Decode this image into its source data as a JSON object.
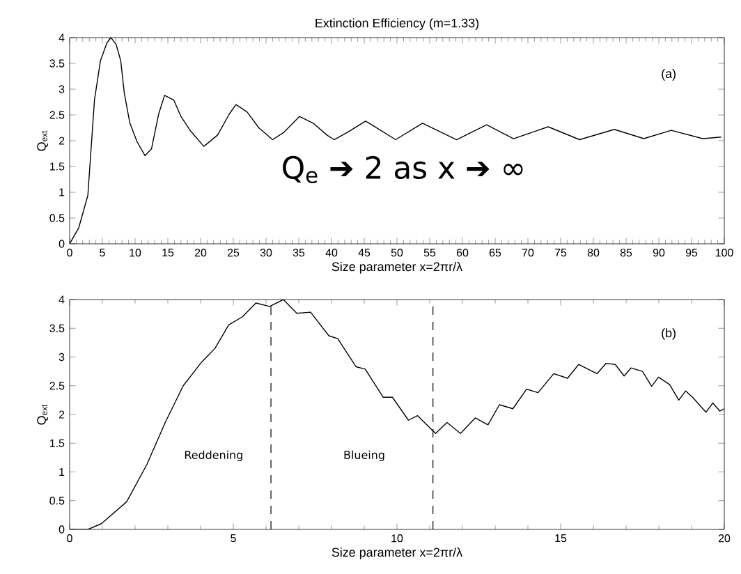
{
  "chart_data": [
    {
      "type": "line",
      "title": "Extinction Efficiency (m=1.33)",
      "xlabel": "Size parameter x=2πr/λ",
      "ylabel": "Q$_{ext}$",
      "annotations": [
        "(a)",
        "Q$_{e}$ ➔ 2 as x ➔ ∞"
      ],
      "x": [
        0,
        1.39,
        2.78,
        3.8,
        4.7,
        5.7,
        6.3,
        7.1,
        7.8,
        8.35,
        9.2,
        10.3,
        11.5,
        12.5,
        13.6,
        14.5,
        15.9,
        17.0,
        18.4,
        20.5,
        22.6,
        24.4,
        25.4,
        27.1,
        28.9,
        31.0,
        32.7,
        35.1,
        37.2,
        39.3,
        40.4,
        42.4,
        45.2,
        46.4,
        49.8,
        53.9,
        59.1,
        63.7,
        67.8,
        73.1,
        77.9,
        83.2,
        87.7,
        91.9,
        96.7,
        99.5
      ],
      "values": [
        0,
        0.31,
        0.94,
        2.8,
        3.55,
        3.9,
        4.0,
        3.87,
        3.55,
        2.92,
        2.34,
        1.98,
        1.71,
        1.84,
        2.52,
        2.88,
        2.79,
        2.47,
        2.2,
        1.89,
        2.11,
        2.52,
        2.7,
        2.56,
        2.25,
        2.02,
        2.16,
        2.47,
        2.34,
        2.11,
        2.02,
        2.16,
        2.38,
        2.29,
        2.02,
        2.34,
        2.02,
        2.31,
        2.04,
        2.27,
        2.02,
        2.22,
        2.04,
        2.2,
        2.04,
        2.07
      ],
      "color": "#000000",
      "xlim": [
        0,
        100
      ],
      "xticks": [
        0,
        5,
        10,
        15,
        20,
        25,
        30,
        35,
        40,
        45,
        50,
        55,
        60,
        65,
        70,
        75,
        80,
        85,
        90,
        95,
        100
      ],
      "ylim": [
        0,
        4
      ],
      "yticks": [
        0,
        0.5,
        1,
        1.5,
        2,
        2.5,
        3,
        3.5,
        4
      ]
    },
    {
      "type": "line",
      "xlabel": "Size parameter x=2πr/λ",
      "ylabel": "Q$_{ext}$",
      "annotations": [
        "(b)",
        "Reddening",
        "Blueing"
      ],
      "x": [
        0,
        0.56,
        0.97,
        1.74,
        2.36,
        2.92,
        3.47,
        4.03,
        4.44,
        4.86,
        5.28,
        5.69,
        6.11,
        6.53,
        6.94,
        7.36,
        7.92,
        8.19,
        8.75,
        9.03,
        9.58,
        9.86,
        10.35,
        10.63,
        11.18,
        11.53,
        11.94,
        12.39,
        12.78,
        13.13,
        13.54,
        13.96,
        14.31,
        14.79,
        15.21,
        15.55,
        16.11,
        16.39,
        16.67,
        16.94,
        17.15,
        17.5,
        17.78,
        17.99,
        18.33,
        18.61,
        18.82,
        19.03,
        19.44,
        19.65,
        19.86,
        20
      ],
      "values": [
        0,
        0,
        0.1,
        0.48,
        1.13,
        1.86,
        2.5,
        2.91,
        3.15,
        3.56,
        3.7,
        3.94,
        3.88,
        4.0,
        3.76,
        3.78,
        3.37,
        3.32,
        2.83,
        2.79,
        2.3,
        2.3,
        1.9,
        1.98,
        1.67,
        1.86,
        1.67,
        1.94,
        1.82,
        2.17,
        2.1,
        2.44,
        2.38,
        2.71,
        2.63,
        2.87,
        2.71,
        2.89,
        2.87,
        2.67,
        2.81,
        2.75,
        2.49,
        2.65,
        2.52,
        2.25,
        2.41,
        2.3,
        2.04,
        2.2,
        2.06,
        2.1
      ],
      "color": "#000000",
      "xlim": [
        0,
        20
      ],
      "xticks": [
        0,
        5,
        10,
        15,
        20
      ],
      "ylim": [
        0,
        4
      ],
      "yticks": [
        0,
        0.5,
        1,
        1.5,
        2,
        2.5,
        3,
        3.5,
        4
      ],
      "ref_lines": [
        {
          "axis": "x",
          "value": 6.15,
          "line_style": "dashed",
          "color": "#000000"
        },
        {
          "axis": "x",
          "value": 11.1,
          "line_style": "dashed",
          "color": "#000000"
        }
      ]
    }
  ]
}
